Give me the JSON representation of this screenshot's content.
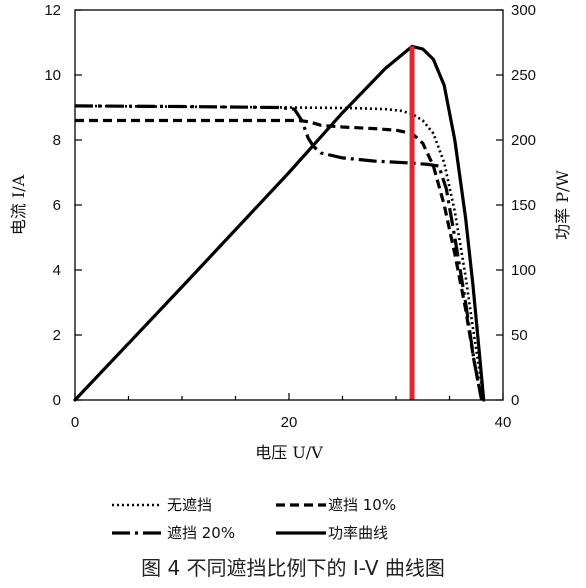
{
  "chart_data": {
    "type": "line",
    "xlabel": "电压 U/V",
    "ylabel_left": "电流 I/A",
    "ylabel_right": "功率 P/W",
    "xlim": [
      0,
      40
    ],
    "ylim_left": [
      0,
      12
    ],
    "ylim_right": [
      0,
      300
    ],
    "xticks": [
      0,
      20,
      40
    ],
    "yticks_left": [
      0,
      2,
      4,
      6,
      8,
      10,
      12
    ],
    "yticks_right": [
      0,
      50,
      100,
      150,
      200,
      250,
      300
    ],
    "grid": false,
    "legend_position": "bottom",
    "series": [
      {
        "name": "无遮挡",
        "axis": "left",
        "style": "dotted",
        "color": "#000000",
        "x": [
          0,
          20,
          26,
          29,
          30.5,
          31.5,
          32.5,
          33.5,
          34.5,
          35.5,
          36.5,
          37.2,
          37.8,
          38.2
        ],
        "y": [
          9.05,
          9.0,
          8.98,
          8.95,
          8.9,
          8.8,
          8.6,
          8.2,
          7.3,
          5.8,
          3.8,
          2.2,
          0.9,
          0
        ]
      },
      {
        "name": "遮挡 10%",
        "axis": "left",
        "style": "dashed",
        "color": "#000000",
        "x": [
          0,
          20,
          21,
          22,
          23,
          25,
          28,
          30,
          31.5,
          32.5,
          33.5,
          34.5,
          35.5,
          36.5,
          37.3,
          38.0
        ],
        "y": [
          8.6,
          8.6,
          8.6,
          8.55,
          8.45,
          8.4,
          8.35,
          8.3,
          8.2,
          7.9,
          7.2,
          6.0,
          4.5,
          2.8,
          1.2,
          0
        ]
      },
      {
        "name": "遮挡 20%",
        "axis": "left",
        "style": "longdash",
        "color": "#000000",
        "x": [
          0,
          10,
          19,
          20.5,
          21.2,
          21.8,
          22.3,
          23,
          25,
          28,
          31,
          33,
          34,
          34.7,
          35.5,
          36.5,
          37.3,
          38.0
        ],
        "y": [
          9.05,
          9.03,
          9.0,
          8.95,
          8.6,
          8.05,
          7.8,
          7.6,
          7.45,
          7.35,
          7.3,
          7.25,
          7.2,
          6.5,
          5.0,
          3.0,
          1.2,
          0
        ]
      },
      {
        "name": "功率曲线",
        "axis": "right",
        "style": "solid",
        "color": "#000000",
        "x": [
          0,
          10,
          20,
          25,
          29,
          31.5,
          32.5,
          33.5,
          34.5,
          35.5,
          36.5,
          37.2,
          37.8,
          38.2
        ],
        "y": [
          0,
          87,
          175,
          221,
          255,
          272,
          270,
          262,
          242,
          200,
          140,
          88,
          35,
          0
        ]
      }
    ],
    "annotations": [
      {
        "type": "vertical_line",
        "x": 31.5,
        "y_from": 0,
        "y_to": 272,
        "axis": "right",
        "color": "#e0282c"
      }
    ]
  },
  "caption": "图 4  不同遮挡比例下的 I-V 曲线图"
}
